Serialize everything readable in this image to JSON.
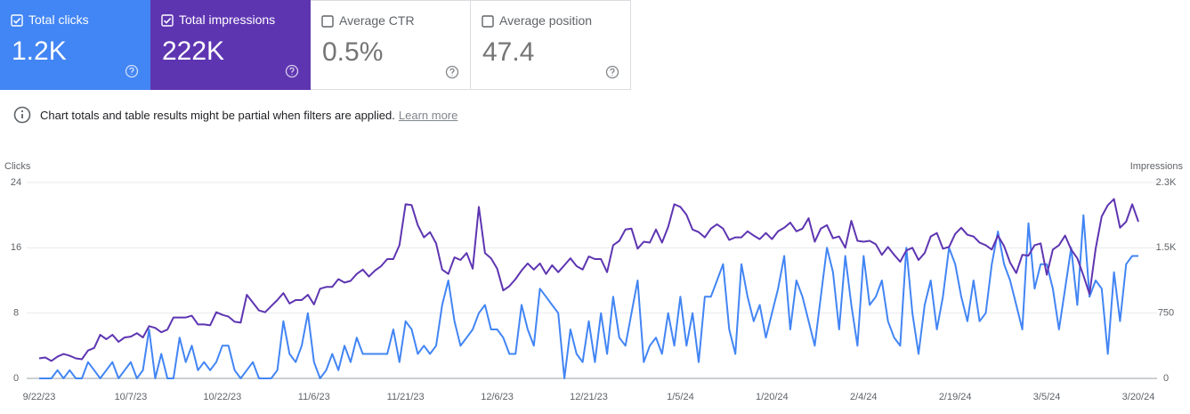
{
  "cards": [
    {
      "label": "Total clicks",
      "value": "1.2K",
      "checked": true,
      "color": "#4285f4"
    },
    {
      "label": "Total impressions",
      "value": "222K",
      "checked": true,
      "color": "#5e35b1"
    },
    {
      "label": "Average CTR",
      "value": "0.5%",
      "checked": false,
      "color": "#ffffff"
    },
    {
      "label": "Average position",
      "value": "47.4",
      "checked": false,
      "color": "#ffffff"
    }
  ],
  "notice": {
    "text": "Chart totals and table results might be partial when filters are applied.",
    "link": "Learn more"
  },
  "chart_data": {
    "type": "line",
    "ylabel": "Clicks",
    "y2label": "Impressions",
    "categories": [
      "9/22/23",
      null,
      null,
      null,
      null,
      null,
      null,
      null,
      null,
      null,
      null,
      null,
      null,
      null,
      null,
      "10/7/23",
      null,
      null,
      null,
      null,
      null,
      null,
      null,
      null,
      null,
      null,
      null,
      null,
      null,
      null,
      "10/22/23",
      null,
      null,
      null,
      null,
      null,
      null,
      null,
      null,
      null,
      null,
      null,
      null,
      null,
      null,
      "11/6/23",
      null,
      null,
      null,
      null,
      null,
      null,
      null,
      null,
      null,
      null,
      null,
      null,
      null,
      null,
      "11/21/23",
      null,
      null,
      null,
      null,
      null,
      null,
      null,
      null,
      null,
      null,
      null,
      null,
      null,
      null,
      "12/6/23",
      null,
      null,
      null,
      null,
      null,
      null,
      null,
      null,
      null,
      null,
      null,
      null,
      null,
      null,
      "12/21/23",
      null,
      null,
      null,
      null,
      null,
      null,
      null,
      null,
      null,
      null,
      null,
      null,
      null,
      null,
      "1/5/24",
      null,
      null,
      null,
      null,
      null,
      null,
      null,
      null,
      null,
      null,
      null,
      null,
      null,
      null,
      "1/20/24",
      null,
      null,
      null,
      null,
      null,
      null,
      null,
      null,
      null,
      null,
      null,
      null,
      null,
      null,
      "2/4/24",
      null,
      null,
      null,
      null,
      null,
      null,
      null,
      null,
      null,
      null,
      null,
      null,
      null,
      null,
      "2/19/24",
      null,
      null,
      null,
      null,
      null,
      null,
      null,
      null,
      null,
      null,
      null,
      null,
      null,
      null,
      "3/5/24",
      null,
      null,
      null,
      null,
      null,
      null,
      null,
      null,
      null,
      null,
      null,
      null,
      null,
      null,
      "3/20/24"
    ],
    "series": [
      {
        "color": "#4285f4",
        "values": [
          0,
          0,
          0,
          1,
          0,
          1,
          0,
          0,
          2,
          1,
          0,
          1,
          2,
          0,
          1,
          2,
          0,
          1,
          6,
          0,
          3,
          0,
          0,
          5,
          2,
          4,
          1,
          2,
          1,
          2,
          4,
          4,
          1,
          0,
          1,
          2,
          0,
          0,
          0,
          1,
          7,
          3,
          2,
          4,
          8,
          2,
          0,
          1,
          3,
          1,
          4,
          2,
          5,
          3,
          3,
          3,
          3,
          3,
          6,
          2,
          7,
          6,
          3,
          4,
          3,
          4,
          9,
          12,
          7,
          4,
          5,
          6,
          8,
          9,
          6,
          6,
          5,
          3,
          3,
          9,
          6,
          4,
          11,
          10,
          9,
          8,
          0,
          6,
          3,
          2,
          7,
          2,
          8,
          3,
          10,
          5,
          4,
          8,
          12,
          2,
          4,
          5,
          3,
          8,
          4,
          10,
          4,
          8,
          2,
          10,
          10,
          12,
          14,
          6,
          3,
          14,
          10,
          7,
          9,
          5,
          8,
          11,
          15,
          6,
          12,
          10,
          7,
          4,
          10,
          16,
          13,
          6,
          15,
          9,
          4,
          15,
          9,
          10,
          12,
          7,
          5,
          4,
          16,
          8,
          3,
          9,
          12,
          6,
          10,
          16,
          14,
          10,
          7,
          12,
          7,
          8,
          14,
          18,
          14,
          12,
          9,
          6,
          19,
          11,
          14,
          14,
          11,
          6,
          11,
          16,
          9,
          20,
          10,
          12,
          11,
          3,
          13,
          7,
          14,
          15,
          15
        ]
      },
      {
        "color": "#5e35b1",
        "axis": "y2",
        "values": [
          230,
          240,
          200,
          250,
          280,
          260,
          230,
          220,
          320,
          350,
          500,
          450,
          500,
          420,
          470,
          480,
          520,
          470,
          600,
          580,
          530,
          560,
          700,
          700,
          700,
          720,
          620,
          620,
          610,
          760,
          730,
          710,
          650,
          640,
          960,
          870,
          780,
          760,
          830,
          900,
          980,
          860,
          900,
          900,
          960,
          850,
          1030,
          1050,
          1050,
          1140,
          1100,
          1120,
          1200,
          1250,
          1170,
          1240,
          1290,
          1370,
          1370,
          1530,
          2000,
          1990,
          1760,
          1620,
          1680,
          1550,
          1250,
          1200,
          1390,
          1360,
          1440,
          1260,
          1970,
          1440,
          1380,
          1260,
          1010,
          1060,
          1140,
          1240,
          1320,
          1250,
          1320,
          1200,
          1300,
          1220,
          1300,
          1380,
          1290,
          1250,
          1400,
          1370,
          1370,
          1220,
          1530,
          1580,
          1710,
          1720,
          1490,
          1570,
          1560,
          1710,
          1560,
          1740,
          2000,
          1970,
          1880,
          1710,
          1680,
          1620,
          1720,
          1770,
          1720,
          1590,
          1620,
          1620,
          1690,
          1640,
          1600,
          1670,
          1600,
          1690,
          1730,
          1790,
          1690,
          1720,
          1840,
          1570,
          1720,
          1760,
          1610,
          1630,
          1500,
          1810,
          1580,
          1570,
          1580,
          1540,
          1420,
          1510,
          1420,
          1340,
          1470,
          1500,
          1360,
          1440,
          1630,
          1670,
          1490,
          1510,
          1660,
          1730,
          1650,
          1630,
          1560,
          1530,
          1480,
          1640,
          1520,
          1330,
          1210,
          1420,
          1410,
          1530,
          1550,
          1190,
          1480,
          1530,
          1640,
          1480,
          1380,
          1180,
          970,
          1490,
          1860,
          1990,
          2060,
          1730,
          1800,
          2000,
          1800
        ]
      }
    ],
    "ylim": [
      0,
      24
    ],
    "yticks": [
      0,
      8,
      16,
      24
    ],
    "y2lim": [
      0,
      2250
    ],
    "y2ticks": [
      0,
      750,
      {
        "value": 1500,
        "label": "1.5K"
      },
      {
        "value": 2250,
        "label": "2.3K"
      }
    ],
    "grid": true
  }
}
